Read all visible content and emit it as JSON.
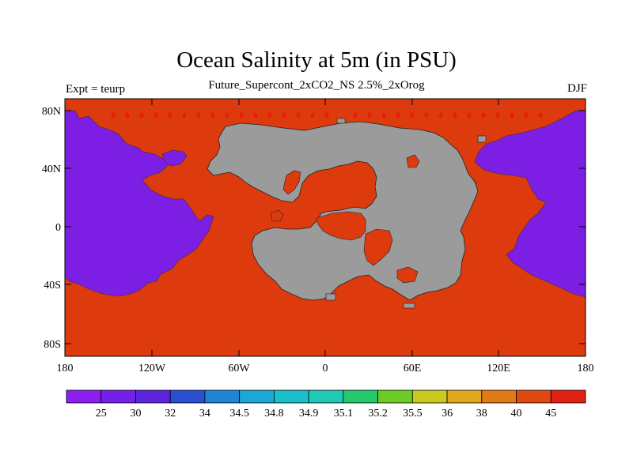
{
  "header": {
    "title": "Ocean Salinity at 5m (in PSU)",
    "subtitle": "Future_Supercont_2xCO2_NS 2.5%_2xOrog",
    "left_label": "Expt = teurp",
    "right_label": "DJF"
  },
  "map": {
    "lat_ticks": [
      "80N",
      "40N",
      "0",
      "40S",
      "80S"
    ],
    "lon_ticks": [
      "180",
      "120W",
      "60W",
      "0",
      "60E",
      "120E",
      "180"
    ],
    "colors": {
      "ocean_high": "#dd3a0e",
      "ocean_low": "#7c1ee3",
      "land": "#9b9b9b",
      "dot": "#e81b10"
    }
  },
  "colorbar": {
    "labels": [
      "25",
      "30",
      "32",
      "34",
      "34.5",
      "34.8",
      "34.9",
      "35.1",
      "35.2",
      "35.5",
      "36",
      "38",
      "40",
      "45"
    ],
    "colors": [
      "#8a1ff0",
      "#7520e8",
      "#5c24dc",
      "#2a4fd0",
      "#1f86d6",
      "#1aa8d8",
      "#1bbfcc",
      "#1fc9b6",
      "#24c96e",
      "#6ccc24",
      "#c9c91f",
      "#e0a81a",
      "#e07a18",
      "#e04a12",
      "#e02010"
    ]
  }
}
